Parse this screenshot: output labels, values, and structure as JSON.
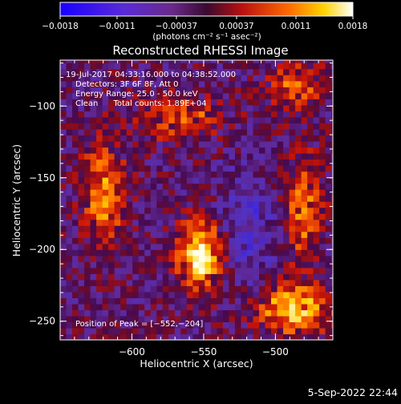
{
  "chart_data": {
    "type": "heatmap",
    "title": "Reconstructed RHESSI Image",
    "xlabel": "Heliocentric X (arcsec)",
    "ylabel": "Heliocentric Y (arcsec)",
    "xlim": [
      -650,
      -460
    ],
    "ylim": [
      -263,
      -68
    ],
    "xticks": [
      {
        "value": -600,
        "label": "−600"
      },
      {
        "value": -550,
        "label": "−550"
      },
      {
        "value": -500,
        "label": "−500"
      }
    ],
    "yticks": [
      {
        "value": -100,
        "label": "−100"
      },
      {
        "value": -150,
        "label": "−150"
      },
      {
        "value": -200,
        "label": "−200"
      },
      {
        "value": -250,
        "label": "−250"
      }
    ],
    "colorbar": {
      "range": [
        -0.0018,
        0.0018
      ],
      "ticks": [
        {
          "value": -0.0018,
          "label": "−0.0018"
        },
        {
          "value": -0.0011,
          "label": "−0.0011"
        },
        {
          "value": -0.00037,
          "label": "−0.00037"
        },
        {
          "value": 0.00037,
          "label": "0.00037"
        },
        {
          "value": 0.0011,
          "label": "0.0011"
        },
        {
          "value": 0.0018,
          "label": "0.0018"
        }
      ],
      "unit_label": "(photons cm⁻² s⁻¹ asec⁻²)"
    },
    "sources": [
      {
        "x": -552,
        "y": -204,
        "peak": 1.0,
        "sx": 11,
        "sy": 16
      },
      {
        "x": -488,
        "y": -242,
        "peak": 0.8,
        "sx": 18,
        "sy": 12
      },
      {
        "x": -620,
        "y": -160,
        "peak": 0.65,
        "sx": 10,
        "sy": 22
      },
      {
        "x": -568,
        "y": -108,
        "peak": 0.45,
        "sx": 22,
        "sy": 10
      },
      {
        "x": -480,
        "y": -170,
        "peak": 0.55,
        "sx": 9,
        "sy": 28
      },
      {
        "x": -485,
        "y": -85,
        "peak": 0.5,
        "sx": 14,
        "sy": 10
      }
    ],
    "annotations": [
      "19-Jul-2017 04:33:16.000 to 04:38:52.000",
      "Detectors: 3F 6F 8F, Att 0",
      "Energy Range: 25.0 - 50.0 keV",
      "Clean      Total counts: 1.89E+04",
      "Position of Peak = [−552,−204]"
    ]
  },
  "footer_timestamp": "5-Sep-2022 22:44"
}
